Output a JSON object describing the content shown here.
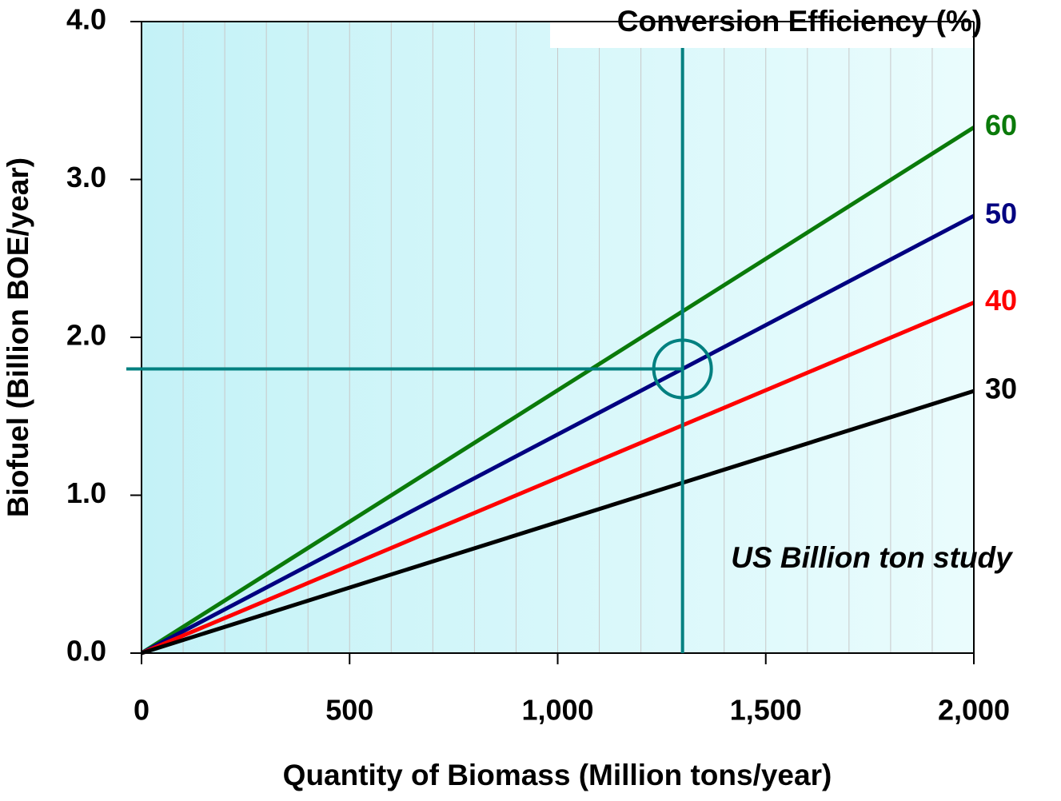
{
  "chart_data": {
    "type": "line",
    "legend_title": "Conversion Efficiency (%)",
    "x_label": "Quantity of Biomass (Million tons/year)",
    "y_label": "Biofuel (Billion BOE/year)",
    "x": [
      0,
      2000
    ],
    "series": [
      {
        "name": "60",
        "color": "#0a7a0a",
        "values": [
          0,
          3.33
        ]
      },
      {
        "name": "50",
        "color": "#000080",
        "values": [
          0,
          2.77
        ]
      },
      {
        "name": "40",
        "color": "#ff0000",
        "values": [
          0,
          2.22
        ]
      },
      {
        "name": "30",
        "color": "#000000",
        "values": [
          0,
          1.66
        ]
      }
    ],
    "xlim": [
      0,
      2000
    ],
    "ylim": [
      0,
      4
    ],
    "xticks": [
      0,
      500,
      {
        "value": 1000,
        "label": "1,000"
      },
      {
        "value": 1500,
        "label": "1,500"
      },
      {
        "value": 2000,
        "label": "2,000"
      }
    ],
    "yticks": [
      {
        "value": 0,
        "label": "0.0"
      },
      {
        "value": 1,
        "label": "1.0"
      },
      {
        "value": 2,
        "label": "2.0"
      },
      {
        "value": 3,
        "label": "3.0"
      },
      {
        "value": 4,
        "label": "4.0"
      }
    ],
    "x_minor_ticks": [
      0,
      100,
      200,
      300,
      400,
      500,
      600,
      700,
      800,
      900,
      1000,
      1100,
      1200,
      1300,
      1400,
      1500,
      1600,
      1700,
      1800,
      1900,
      2000
    ],
    "grid": true,
    "reference_point": {
      "x": 1300,
      "y": 1.8,
      "color": "#008080"
    },
    "annotation": "US Billion ton study"
  }
}
